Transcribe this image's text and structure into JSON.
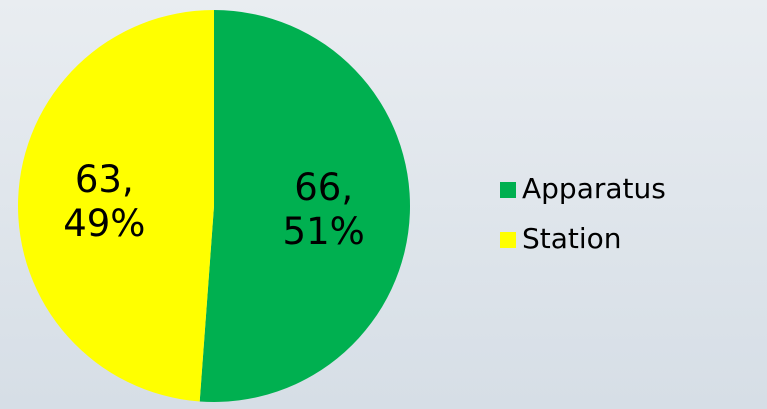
{
  "chart_data": {
    "type": "pie",
    "categories": [
      "Apparatus",
      "Station"
    ],
    "values": [
      66,
      63
    ],
    "value_labels": [
      "66, 51%",
      "63, 49%"
    ],
    "colors": [
      "#00b050",
      "#ffff00"
    ],
    "legend": "right"
  }
}
